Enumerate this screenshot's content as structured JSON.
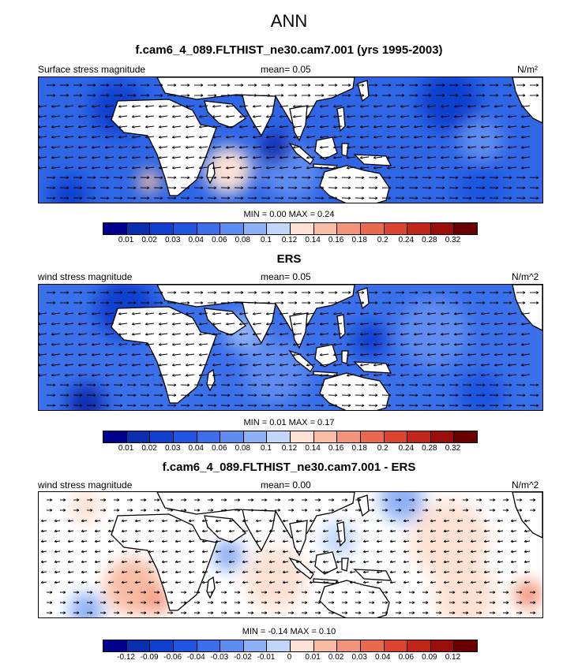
{
  "title": "ANN",
  "panels": [
    {
      "title": "f.cam6_4_089.FLTHIST_ne30.cam7.001 (yrs 1995-2003)",
      "left_label": "Surface stress magnitude",
      "mean_text": "mean=   0.05",
      "units": "N/m²",
      "minmax_text": "MIN =  0.00 MAX =   0.24",
      "levels": [
        "0.01",
        "0.02",
        "0.03",
        "0.04",
        "0.06",
        "0.08",
        "0.1",
        "0.12",
        "0.14",
        "0.16",
        "0.18",
        "0.2",
        "0.24",
        "0.28",
        "0.32"
      ],
      "field": "model"
    },
    {
      "title": "ERS",
      "left_label": "wind stress magnitude",
      "mean_text": "mean=   0.05",
      "units": "N/m^2",
      "minmax_text": "MIN =  0.01 MAX =   0.17",
      "levels": [
        "0.01",
        "0.02",
        "0.03",
        "0.04",
        "0.06",
        "0.08",
        "0.1",
        "0.12",
        "0.14",
        "0.16",
        "0.18",
        "0.2",
        "0.24",
        "0.28",
        "0.32"
      ],
      "field": "obs"
    },
    {
      "title": "f.cam6_4_089.FLTHIST_ne30.cam7.001 - ERS",
      "left_label": "wind stress magnitude",
      "mean_text": "mean=   0.00",
      "units": "N/m^2",
      "minmax_text": "MIN =  -0.14 MAX =   0.10",
      "levels": [
        "-0.12",
        "-0.09",
        "-0.06",
        "-0.04",
        "-0.03",
        "-0.02",
        "-0.01",
        "0",
        "0.01",
        "0.02",
        "0.03",
        "0.04",
        "0.06",
        "0.09",
        "0.12"
      ],
      "field": "diff"
    }
  ],
  "colors": {
    "palette": [
      "#00008f",
      "#0a2fb0",
      "#1040cf",
      "#1f55e0",
      "#3b6ee8",
      "#5f8cf0",
      "#8eb0f5",
      "#c2d6fa",
      "#fde1d4",
      "#f8bba3",
      "#f2947a",
      "#ea6a4f",
      "#dd4430",
      "#c1251a",
      "#9a0e0b",
      "#6b0000"
    ],
    "land": "#ffffff",
    "coast": "#000000"
  }
}
